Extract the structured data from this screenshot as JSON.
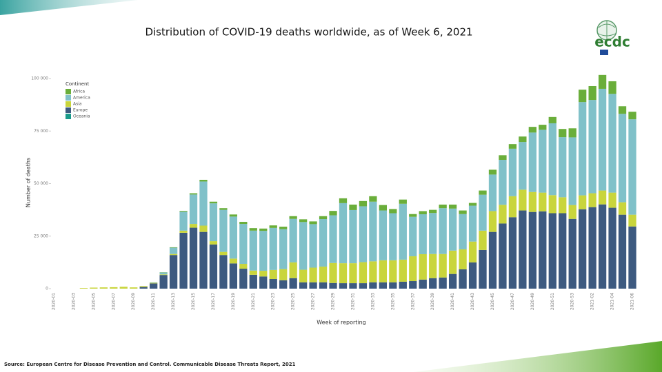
{
  "chart_data": {
    "type": "stacked-bar",
    "title": "Distribution of COVID-19 deaths worldwide, as of Week 6, 2021",
    "x_label": "Week of reporting",
    "y_label": "Number of deaths",
    "legend_title": "Continent",
    "categories": [
      "2020-01",
      null,
      "2020-03",
      null,
      "2020-05",
      null,
      "2020-07",
      null,
      "2020-09",
      null,
      "2020-11",
      null,
      "2020-13",
      null,
      "2020-15",
      null,
      "2020-17",
      null,
      "2020-19",
      null,
      "2020-21",
      null,
      "2020-23",
      null,
      "2020-25",
      null,
      "2020-27",
      null,
      "2020-29",
      null,
      "2020-31",
      null,
      "2020-33",
      null,
      "2020-35",
      null,
      "2020-37",
      null,
      "2020-39",
      null,
      "2020-41",
      null,
      "2020-43",
      null,
      "2020-45",
      null,
      "2020-47",
      null,
      "2020-49",
      null,
      "2020-51",
      null,
      "2020-53",
      null,
      "2021-02",
      null,
      "2021-04",
      null,
      "2021-06"
    ],
    "series": [
      {
        "name": "Africa",
        "color": "#6aae3a",
        "values": [
          0,
          0,
          0,
          0,
          0,
          0,
          0,
          0,
          0,
          0,
          0,
          100,
          200,
          400,
          600,
          800,
          800,
          800,
          1000,
          1000,
          1200,
          1100,
          1200,
          1200,
          1300,
          1300,
          1300,
          1400,
          2100,
          2300,
          2600,
          2500,
          2600,
          2600,
          2000,
          2000,
          1300,
          1500,
          1500,
          1700,
          1900,
          1700,
          1300,
          2000,
          2300,
          2200,
          2200,
          2600,
          2700,
          2400,
          3000,
          3900,
          4300,
          5900,
          6600,
          6600,
          6000,
          3600,
          3600
        ]
      },
      {
        "name": "America",
        "color": "#80c1c9",
        "values": [
          0,
          0,
          0,
          0,
          0,
          0,
          0,
          0,
          0,
          0,
          200,
          900,
          3000,
          9000,
          14000,
          21000,
          18000,
          20000,
          20000,
          19000,
          19000,
          19000,
          20000,
          19000,
          20700,
          22700,
          20700,
          22600,
          22700,
          28600,
          25300,
          26600,
          28400,
          23700,
          22400,
          26600,
          18800,
          19000,
          19500,
          21800,
          20000,
          16800,
          17100,
          17100,
          17400,
          21400,
          22600,
          22700,
          28300,
          29900,
          34200,
          28600,
          32200,
          44400,
          44400,
          48400,
          47000,
          42100,
          45400
        ]
      },
      {
        "name": "Asia",
        "color": "#c9d53c",
        "values": [
          0,
          0,
          0,
          300,
          500,
          600,
          700,
          900,
          600,
          400,
          300,
          300,
          500,
          1000,
          1800,
          3000,
          1600,
          1500,
          2300,
          2300,
          2000,
          2700,
          4300,
          5300,
          7500,
          6000,
          7000,
          7500,
          9500,
          9500,
          9500,
          10000,
          10000,
          10500,
          10500,
          10500,
          11800,
          12100,
          11500,
          11200,
          11100,
          9500,
          9900,
          9200,
          9900,
          8900,
          10000,
          9900,
          9500,
          8900,
          8600,
          7600,
          6600,
          6600,
          6600,
          6600,
          7200,
          5900,
          5600
        ]
      },
      {
        "name": "Europe",
        "color": "#3d5a80",
        "values": [
          0,
          0,
          0,
          0,
          0,
          0,
          0,
          0,
          0,
          800,
          2500,
          6500,
          16000,
          26600,
          29000,
          27000,
          21000,
          16000,
          12000,
          9500,
          6600,
          5800,
          4600,
          4000,
          5000,
          3000,
          3000,
          3000,
          2700,
          2600,
          2600,
          2600,
          3000,
          3000,
          3000,
          3300,
          3600,
          4300,
          5000,
          5300,
          7000,
          9200,
          12500,
          18400,
          27000,
          31000,
          34000,
          37200,
          36500,
          36800,
          35900,
          35900,
          33200,
          37800,
          38800,
          40100,
          38500,
          35200,
          29600
        ]
      },
      {
        "name": "Oceania",
        "color": "#1a9a8a",
        "values": [
          0,
          0,
          0,
          0,
          0,
          0,
          0,
          0,
          0,
          0,
          0,
          0,
          0,
          0,
          0,
          0,
          0,
          0,
          0,
          0,
          0,
          0,
          0,
          0,
          0,
          0,
          0,
          0,
          0,
          0,
          0,
          0,
          0,
          0,
          0,
          0,
          0,
          0,
          0,
          0,
          0,
          0,
          0,
          0,
          0,
          0,
          0,
          0,
          0,
          0,
          0,
          0,
          0,
          0,
          0,
          0,
          0,
          0,
          0
        ]
      }
    ],
    "ylim": [
      0,
      100000
    ],
    "yticks": [
      0,
      {
        "value": 25000,
        "label": "25 000"
      },
      {
        "value": 50000,
        "label": "50 000"
      },
      {
        "value": 75000,
        "label": "75 000"
      },
      {
        "value": 100000,
        "label": "100 000"
      }
    ],
    "grid": false,
    "legend": "top-left"
  },
  "footer": {
    "source": "Source: European Centre for Disease Prevention and Control. Communicable Disease Threats Report, 2021"
  },
  "logo": {
    "text": "ecdc"
  }
}
